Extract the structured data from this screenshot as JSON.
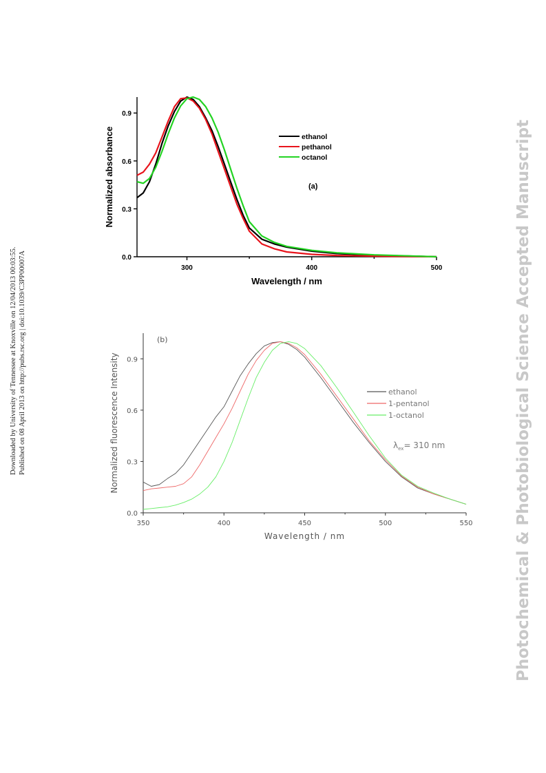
{
  "sidebar_left": {
    "line1": "Downloaded by University of Tennessee at Knoxville on 12/04/2013 00:03:55.",
    "line2": "Published on 08 April 2013 on http://pubs.rsc.org | doi:10.1039/C3PP00007A"
  },
  "watermark": "Photochemical & Photobiological Science Accepted Manuscript",
  "chart_data": [
    {
      "type": "line",
      "panel_label": "(a)",
      "xlabel": "Wavelength / nm",
      "ylabel": "Normalized absorbance",
      "xlim": [
        260,
        500
      ],
      "ylim": [
        0,
        1.0
      ],
      "xticks": [
        300,
        400,
        500
      ],
      "yticks": [
        0.0,
        0.3,
        0.6,
        0.9
      ],
      "tick_labels_x": [
        "300",
        "400",
        "500"
      ],
      "tick_labels_y": [
        "0.0",
        "0.3",
        "0.6",
        "0.9"
      ],
      "grid": false,
      "legend_position": "top-right",
      "series": [
        {
          "name": "ethanol",
          "color": "#000000",
          "x": [
            260,
            265,
            270,
            275,
            280,
            285,
            290,
            295,
            300,
            305,
            310,
            315,
            320,
            325,
            330,
            335,
            340,
            345,
            350,
            360,
            370,
            380,
            400,
            420,
            450,
            500
          ],
          "y": [
            0.37,
            0.4,
            0.47,
            0.58,
            0.71,
            0.82,
            0.91,
            0.975,
            1.0,
            0.985,
            0.94,
            0.87,
            0.79,
            0.69,
            0.58,
            0.47,
            0.36,
            0.26,
            0.18,
            0.11,
            0.08,
            0.06,
            0.035,
            0.02,
            0.01,
            0.0
          ]
        },
        {
          "name": "pethanol",
          "color": "#e8141c",
          "x": [
            260,
            265,
            270,
            275,
            280,
            285,
            290,
            295,
            300,
            305,
            310,
            315,
            320,
            325,
            330,
            335,
            340,
            345,
            350,
            360,
            370,
            380,
            400,
            420,
            450,
            500
          ],
          "y": [
            0.51,
            0.53,
            0.58,
            0.65,
            0.75,
            0.85,
            0.94,
            0.99,
            0.995,
            0.975,
            0.93,
            0.86,
            0.77,
            0.66,
            0.55,
            0.44,
            0.33,
            0.24,
            0.16,
            0.08,
            0.05,
            0.03,
            0.015,
            0.008,
            0.004,
            0.0
          ]
        },
        {
          "name": "octanol",
          "color": "#22d322",
          "x": [
            260,
            265,
            270,
            275,
            280,
            285,
            290,
            295,
            300,
            305,
            310,
            315,
            320,
            325,
            330,
            335,
            340,
            345,
            350,
            360,
            370,
            380,
            400,
            420,
            450,
            500
          ],
          "y": [
            0.47,
            0.46,
            0.49,
            0.56,
            0.66,
            0.77,
            0.87,
            0.945,
            0.99,
            1.0,
            0.985,
            0.94,
            0.87,
            0.78,
            0.67,
            0.55,
            0.43,
            0.32,
            0.22,
            0.13,
            0.09,
            0.065,
            0.04,
            0.025,
            0.012,
            0.0
          ]
        }
      ]
    },
    {
      "type": "line",
      "panel_label": "(b)",
      "xlabel": "Wavelength / nm",
      "ylabel": "Normalized fluorescence Intensity",
      "annotation": "λex= 310 nm",
      "annotation_main": "λ",
      "annotation_sub": "ex",
      "annotation_rest": "= 310 nm",
      "xlim": [
        350,
        550
      ],
      "ylim": [
        0,
        1.05
      ],
      "xticks": [
        350,
        400,
        450,
        500,
        550
      ],
      "yticks": [
        0.0,
        0.3,
        0.6,
        0.9
      ],
      "tick_labels_x": [
        "350",
        "400",
        "450",
        "500",
        "550"
      ],
      "tick_labels_y": [
        "0.0",
        "0.3",
        "0.6",
        "0.9"
      ],
      "grid": false,
      "legend_position": "right",
      "series": [
        {
          "name": "ethanol",
          "color": "#555555",
          "x": [
            350,
            355,
            360,
            365,
            370,
            375,
            380,
            385,
            390,
            395,
            400,
            405,
            410,
            415,
            420,
            425,
            430,
            435,
            440,
            445,
            450,
            460,
            470,
            480,
            490,
            500,
            510,
            520,
            530,
            540,
            550
          ],
          "y": [
            0.18,
            0.155,
            0.165,
            0.2,
            0.23,
            0.28,
            0.35,
            0.42,
            0.49,
            0.56,
            0.62,
            0.71,
            0.8,
            0.87,
            0.93,
            0.975,
            0.995,
            1.0,
            0.985,
            0.955,
            0.91,
            0.79,
            0.66,
            0.53,
            0.41,
            0.3,
            0.21,
            0.145,
            0.11,
            0.08,
            0.05
          ]
        },
        {
          "name": "1-pentanol",
          "color": "#ee6666",
          "x": [
            350,
            355,
            360,
            365,
            370,
            375,
            380,
            385,
            390,
            395,
            400,
            405,
            410,
            415,
            420,
            425,
            430,
            435,
            440,
            445,
            450,
            460,
            470,
            480,
            490,
            500,
            510,
            520,
            530,
            540,
            550
          ],
          "y": [
            0.13,
            0.14,
            0.145,
            0.15,
            0.155,
            0.17,
            0.21,
            0.28,
            0.36,
            0.44,
            0.52,
            0.61,
            0.71,
            0.81,
            0.89,
            0.95,
            0.99,
            1.0,
            0.99,
            0.965,
            0.925,
            0.81,
            0.68,
            0.55,
            0.42,
            0.31,
            0.215,
            0.15,
            0.11,
            0.08,
            0.05
          ]
        },
        {
          "name": "1-octanol",
          "color": "#66ee66",
          "x": [
            350,
            355,
            360,
            365,
            370,
            375,
            380,
            385,
            390,
            395,
            400,
            405,
            410,
            415,
            420,
            425,
            430,
            435,
            440,
            445,
            450,
            460,
            470,
            480,
            490,
            500,
            510,
            520,
            530,
            540,
            550
          ],
          "y": [
            0.02,
            0.025,
            0.03,
            0.035,
            0.045,
            0.06,
            0.08,
            0.11,
            0.15,
            0.21,
            0.3,
            0.41,
            0.54,
            0.67,
            0.79,
            0.88,
            0.95,
            0.99,
            1.0,
            0.99,
            0.96,
            0.86,
            0.73,
            0.59,
            0.45,
            0.32,
            0.22,
            0.155,
            0.115,
            0.08,
            0.05
          ]
        }
      ]
    }
  ]
}
